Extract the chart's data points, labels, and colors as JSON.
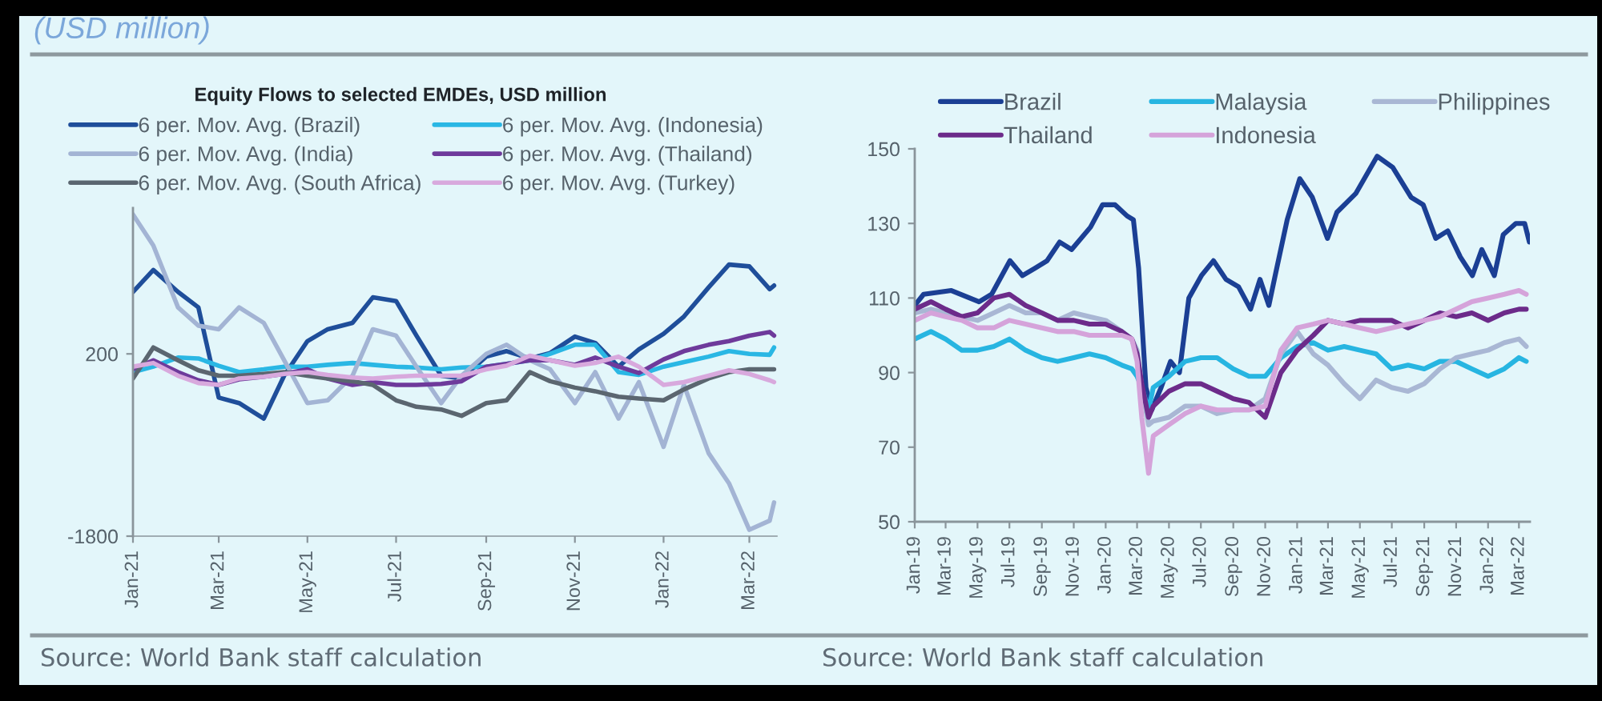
{
  "chart_data": [
    {
      "type": "line",
      "title": "Equity Flows to selected EMDEs, USD million",
      "subtitle": "(USD million)",
      "annotations": [
        "Source: World Bank staff calculation"
      ],
      "legend": "top",
      "x": [
        "2021-01-01",
        "2021-01-15",
        "2021-02-01",
        "2021-02-15",
        "2021-03-01",
        "2021-03-15",
        "2021-04-01",
        "2021-04-15",
        "2021-05-01",
        "2021-05-15",
        "2021-06-01",
        "2021-06-15",
        "2021-07-01",
        "2021-07-15",
        "2021-08-01",
        "2021-08-15",
        "2021-09-01",
        "2021-09-15",
        "2021-10-01",
        "2021-10-15",
        "2021-11-01",
        "2021-11-15",
        "2021-12-01",
        "2021-12-15",
        "2022-01-01",
        "2022-01-15",
        "2022-02-01",
        "2022-02-15",
        "2022-03-01",
        "2022-03-15",
        "2022-03-18"
      ],
      "xlim": [
        "2021-01-01",
        "2022-03-20"
      ],
      "xticks": [
        {
          "value": "2021-01-01",
          "label": "Jan-21"
        },
        {
          "value": "2021-03-01",
          "label": "Mar-21"
        },
        {
          "value": "2021-05-01",
          "label": "May-21"
        },
        {
          "value": "2021-07-01",
          "label": "Jul-21"
        },
        {
          "value": "2021-09-01",
          "label": "Sep-21"
        },
        {
          "value": "2021-11-01",
          "label": "Nov-21"
        },
        {
          "value": "2022-01-01",
          "label": "Jan-22"
        },
        {
          "value": "2022-03-01",
          "label": "Mar-22"
        }
      ],
      "ylim": [
        -1800,
        1800
      ],
      "yticks": [
        -1800,
        200
      ],
      "series": [
        {
          "name": "6 per. Mov. Avg. (Brazil)",
          "color": "#1f4e9a",
          "values": [
            880,
            1120,
            880,
            710,
            -280,
            -340,
            -510,
            -40,
            340,
            470,
            540,
            820,
            780,
            400,
            -40,
            -70,
            170,
            230,
            150,
            210,
            390,
            320,
            60,
            250,
            420,
            610,
            930,
            1180,
            1160,
            910,
            950
          ]
        },
        {
          "name": "6 per. Mov. Avg. (Indonesia)",
          "color": "#2ab7e4",
          "values": [
            0,
            60,
            160,
            150,
            70,
            0,
            30,
            60,
            60,
            80,
            100,
            80,
            60,
            50,
            30,
            50,
            60,
            90,
            130,
            200,
            300,
            300,
            0,
            -30,
            60,
            110,
            170,
            230,
            200,
            190,
            270
          ]
        },
        {
          "name": "6 per. Mov. Avg. (India)",
          "color": "#a3b4d4",
          "values": [
            1730,
            1390,
            710,
            510,
            470,
            710,
            540,
            130,
            -340,
            -310,
            -40,
            470,
            400,
            60,
            -340,
            -40,
            200,
            300,
            130,
            30,
            -340,
            0,
            -510,
            -110,
            -820,
            -140,
            -890,
            -1220,
            -1730,
            -1630,
            -1430
          ]
        },
        {
          "name": "6 per. Mov. Avg. (Thailand)",
          "color": "#6e3a9b",
          "values": [
            30,
            130,
            0,
            -90,
            -140,
            -80,
            -50,
            -20,
            30,
            -70,
            -140,
            -110,
            -140,
            -140,
            -130,
            -100,
            60,
            90,
            130,
            130,
            80,
            160,
            60,
            -10,
            140,
            230,
            300,
            340,
            400,
            440,
            400
          ]
        },
        {
          "name": "6 per. Mov. Avg. (South Africa)",
          "color": "#5b6670",
          "values": [
            -70,
            270,
            130,
            20,
            -40,
            -40,
            -20,
            0,
            -40,
            -70,
            -100,
            -140,
            -310,
            -380,
            -410,
            -480,
            -340,
            -310,
            0,
            -100,
            -170,
            -210,
            -270,
            -290,
            -310,
            -190,
            -70,
            0,
            30,
            30,
            30
          ]
        },
        {
          "name": "6 per. Mov. Avg. (Turkey)",
          "color": "#d8a9dd",
          "values": [
            60,
            100,
            -40,
            -120,
            -140,
            -70,
            -50,
            -20,
            0,
            -30,
            -60,
            -70,
            -50,
            -40,
            -40,
            -40,
            30,
            70,
            180,
            130,
            70,
            100,
            170,
            60,
            -140,
            -110,
            -40,
            20,
            -20,
            -90,
            -110
          ]
        }
      ]
    },
    {
      "type": "line",
      "annotations": [
        "Source: World Bank staff calculation"
      ],
      "legend": "top",
      "x": [
        "2019-01-01",
        "2019-02-01",
        "2019-03-01",
        "2019-04-01",
        "2019-05-01",
        "2019-06-01",
        "2019-07-01",
        "2019-08-01",
        "2019-09-01",
        "2019-10-01",
        "2019-11-01",
        "2019-12-01",
        "2020-01-01",
        "2020-02-01",
        "2020-02-20",
        "2020-03-01",
        "2020-03-10",
        "2020-03-23",
        "2020-04-01",
        "2020-05-01",
        "2020-06-01",
        "2020-07-01",
        "2020-08-01",
        "2020-09-01",
        "2020-10-01",
        "2020-11-01",
        "2020-12-01",
        "2021-01-01",
        "2021-02-01",
        "2021-03-01",
        "2021-04-01",
        "2021-05-01",
        "2021-06-01",
        "2021-07-01",
        "2021-08-01",
        "2021-09-01",
        "2021-10-01",
        "2021-11-01",
        "2021-12-01",
        "2022-01-01",
        "2022-02-01",
        "2022-03-01",
        "2022-03-15"
      ],
      "xlim": [
        "2019-01-01",
        "2022-03-22"
      ],
      "xticks": [
        {
          "value": "2019-01-01",
          "label": "Jan-19"
        },
        {
          "value": "2019-03-01",
          "label": "Mar-19"
        },
        {
          "value": "2019-05-01",
          "label": "May-19"
        },
        {
          "value": "2019-07-01",
          "label": "Jul-19"
        },
        {
          "value": "2019-09-01",
          "label": "Sep-19"
        },
        {
          "value": "2019-11-01",
          "label": "Nov-19"
        },
        {
          "value": "2020-01-01",
          "label": "Jan-20"
        },
        {
          "value": "2020-03-01",
          "label": "Mar-20"
        },
        {
          "value": "2020-05-01",
          "label": "May-20"
        },
        {
          "value": "2020-07-01",
          "label": "Jul-20"
        },
        {
          "value": "2020-09-01",
          "label": "Sep-20"
        },
        {
          "value": "2020-11-01",
          "label": "Nov-20"
        },
        {
          "value": "2021-01-01",
          "label": "Jan-21"
        },
        {
          "value": "2021-03-01",
          "label": "Mar-21"
        },
        {
          "value": "2021-05-01",
          "label": "May-21"
        },
        {
          "value": "2021-07-01",
          "label": "Jul-21"
        },
        {
          "value": "2021-09-01",
          "label": "Sep-21"
        },
        {
          "value": "2021-11-01",
          "label": "Nov-21"
        },
        {
          "value": "2022-01-01",
          "label": "Jan-22"
        },
        {
          "value": "2022-03-01",
          "label": "Mar-22"
        }
      ],
      "ylim": [
        50,
        150
      ],
      "yticks": [
        50,
        70,
        90,
        110,
        130,
        150
      ],
      "series": [
        {
          "name": "Brazil",
          "color": "#1b3f94",
          "x": [
            "2019-01-01",
            "2019-01-18",
            "2019-03-12",
            "2019-05-04",
            "2019-05-28",
            "2019-07-02",
            "2019-07-26",
            "2019-08-19",
            "2019-09-11",
            "2019-10-05",
            "2019-10-28",
            "2019-12-03",
            "2019-12-26",
            "2020-01-19",
            "2020-02-11",
            "2020-02-23",
            "2020-03-04",
            "2020-03-18",
            "2020-03-29",
            "2020-04-16",
            "2020-05-04",
            "2020-05-21",
            "2020-06-08",
            "2020-07-02",
            "2020-07-25",
            "2020-08-18",
            "2020-09-11",
            "2020-10-04",
            "2020-10-22",
            "2020-11-08",
            "2020-11-20",
            "2020-12-13",
            "2021-01-06",
            "2021-01-30",
            "2021-02-28",
            "2021-03-18",
            "2021-04-23",
            "2021-06-03",
            "2021-07-03",
            "2021-08-07",
            "2021-08-30",
            "2021-09-23",
            "2021-10-16",
            "2021-11-09",
            "2021-12-02",
            "2021-12-20",
            "2022-01-13",
            "2022-01-30",
            "2022-02-23",
            "2022-03-12",
            "2022-03-21"
          ],
          "values": [
            108,
            111,
            112,
            109,
            111,
            120,
            116,
            118,
            120,
            125,
            123,
            129,
            135,
            135,
            132,
            131,
            118,
            86,
            80,
            86,
            93,
            90,
            110,
            116,
            120,
            115,
            113,
            107,
            115,
            108,
            116,
            131,
            142,
            137,
            126,
            133,
            138,
            148,
            145,
            137,
            135,
            126,
            128,
            121,
            116,
            123,
            116,
            127,
            130,
            130,
            125
          ]
        },
        {
          "name": "Malaysia",
          "color": "#27b5e1",
          "values": [
            99,
            101,
            99,
            96,
            96,
            97,
            99,
            96,
            94,
            93,
            94,
            95,
            94,
            92,
            91,
            89,
            86,
            80,
            86,
            89,
            93,
            94,
            94,
            91,
            89,
            89,
            94,
            97,
            98,
            96,
            97,
            96,
            95,
            91,
            92,
            91,
            93,
            93,
            91,
            89,
            91,
            94,
            93
          ]
        },
        {
          "name": "Philippines",
          "color": "#a9b7d4",
          "values": [
            106,
            107,
            106,
            105,
            104,
            106,
            108,
            106,
            106,
            104,
            106,
            105,
            104,
            101,
            99,
            96,
            86,
            76,
            77,
            78,
            81,
            81,
            79,
            80,
            80,
            83,
            95,
            101,
            95,
            92,
            87,
            83,
            88,
            86,
            85,
            87,
            91,
            94,
            95,
            96,
            98,
            99,
            97
          ]
        },
        {
          "name": "Thailand",
          "color": "#6c2b8a",
          "values": [
            107,
            109,
            107,
            105,
            106,
            110,
            111,
            108,
            106,
            104,
            104,
            103,
            103,
            101,
            99,
            95,
            87,
            78,
            81,
            85,
            87,
            87,
            85,
            83,
            82,
            78,
            90,
            96,
            100,
            104,
            103,
            104,
            104,
            104,
            102,
            104,
            106,
            105,
            106,
            104,
            106,
            107,
            107
          ]
        },
        {
          "name": "Indonesia",
          "color": "#d5a3da",
          "values": [
            104,
            106,
            105,
            104,
            102,
            102,
            104,
            103,
            102,
            101,
            101,
            100,
            100,
            100,
            99,
            93,
            78,
            63,
            73,
            76,
            79,
            81,
            80,
            80,
            80,
            81,
            96,
            102,
            103,
            104,
            103,
            102,
            101,
            102,
            103,
            104,
            105,
            107,
            109,
            110,
            111,
            112,
            111
          ]
        }
      ]
    }
  ]
}
